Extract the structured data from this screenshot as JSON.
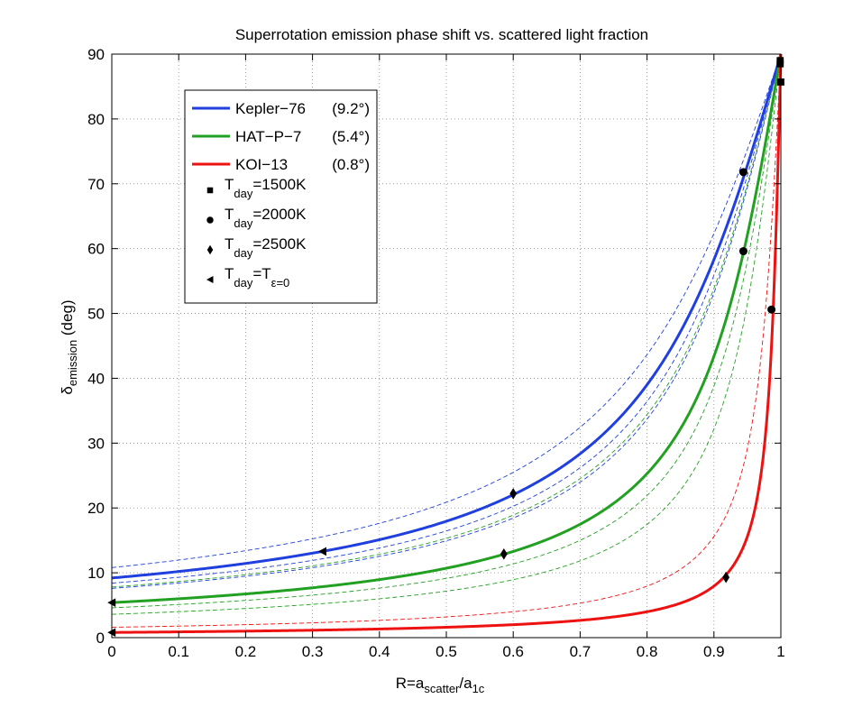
{
  "chart_data": {
    "type": "line",
    "title": "Superrotation emission phase shift vs. scattered light fraction",
    "xlabel": {
      "main": "R=a",
      "sub1": "scatter",
      "mid": "/a",
      "sub2": "1c"
    },
    "ylabel": {
      "main": "δ",
      "sub": "emission",
      "rest": " (deg)"
    },
    "xlim": [
      0,
      1
    ],
    "ylim": [
      0,
      90
    ],
    "xticks": [
      "0",
      "0.1",
      "0.2",
      "0.3",
      "0.4",
      "0.5",
      "0.6",
      "0.7",
      "0.8",
      "0.9",
      "1"
    ],
    "yticks": [
      "0",
      "10",
      "20",
      "30",
      "40",
      "50",
      "60",
      "70",
      "80",
      "90"
    ],
    "grid": true,
    "legend_position": "top-left",
    "series": [
      {
        "name": "Kepler−76",
        "note": "(9.2°)",
        "color": "#1f3fdf",
        "delta0": 9.2,
        "dashed_offsets": [
          10.8,
          8.4,
          7.6
        ]
      },
      {
        "name": "HAT−P−7",
        "note": "(5.4°)",
        "color": "#22a022",
        "delta0": 5.4,
        "dashed_offsets": [
          7.8,
          4.6,
          3.6
        ]
      },
      {
        "name": "KOI−13",
        "note": "(0.8°)",
        "color": "#ee1111",
        "delta0": 0.8,
        "dashed_offsets": [
          1.6
        ]
      }
    ],
    "markers": [
      {
        "legend": {
          "main": "T",
          "sub": "day",
          "rest": "=1500K"
        },
        "shape": "square",
        "points": [
          [
            0.999,
            89.0
          ],
          [
            0.999,
            88.5
          ],
          [
            1.0,
            85.7
          ]
        ]
      },
      {
        "legend": {
          "main": "T",
          "sub": "day",
          "rest": "=2000K"
        },
        "shape": "circle",
        "points": [
          [
            0.944,
            71.8
          ],
          [
            0.944,
            59.6
          ],
          [
            0.986,
            50.6
          ]
        ]
      },
      {
        "legend": {
          "main": "T",
          "sub": "day",
          "rest": "=2500K"
        },
        "shape": "diamond",
        "points": [
          [
            0.6,
            22.2
          ],
          [
            0.586,
            12.9
          ],
          [
            0.918,
            9.3
          ]
        ]
      },
      {
        "legend": {
          "main": "T",
          "sub": "day",
          "rest": "=T",
          "sub2": "ε=0"
        },
        "shape": "triangle-left",
        "points": [
          [
            0.315,
            13.3
          ],
          [
            0.0,
            5.4
          ],
          [
            0.0,
            0.8
          ]
        ]
      }
    ]
  }
}
